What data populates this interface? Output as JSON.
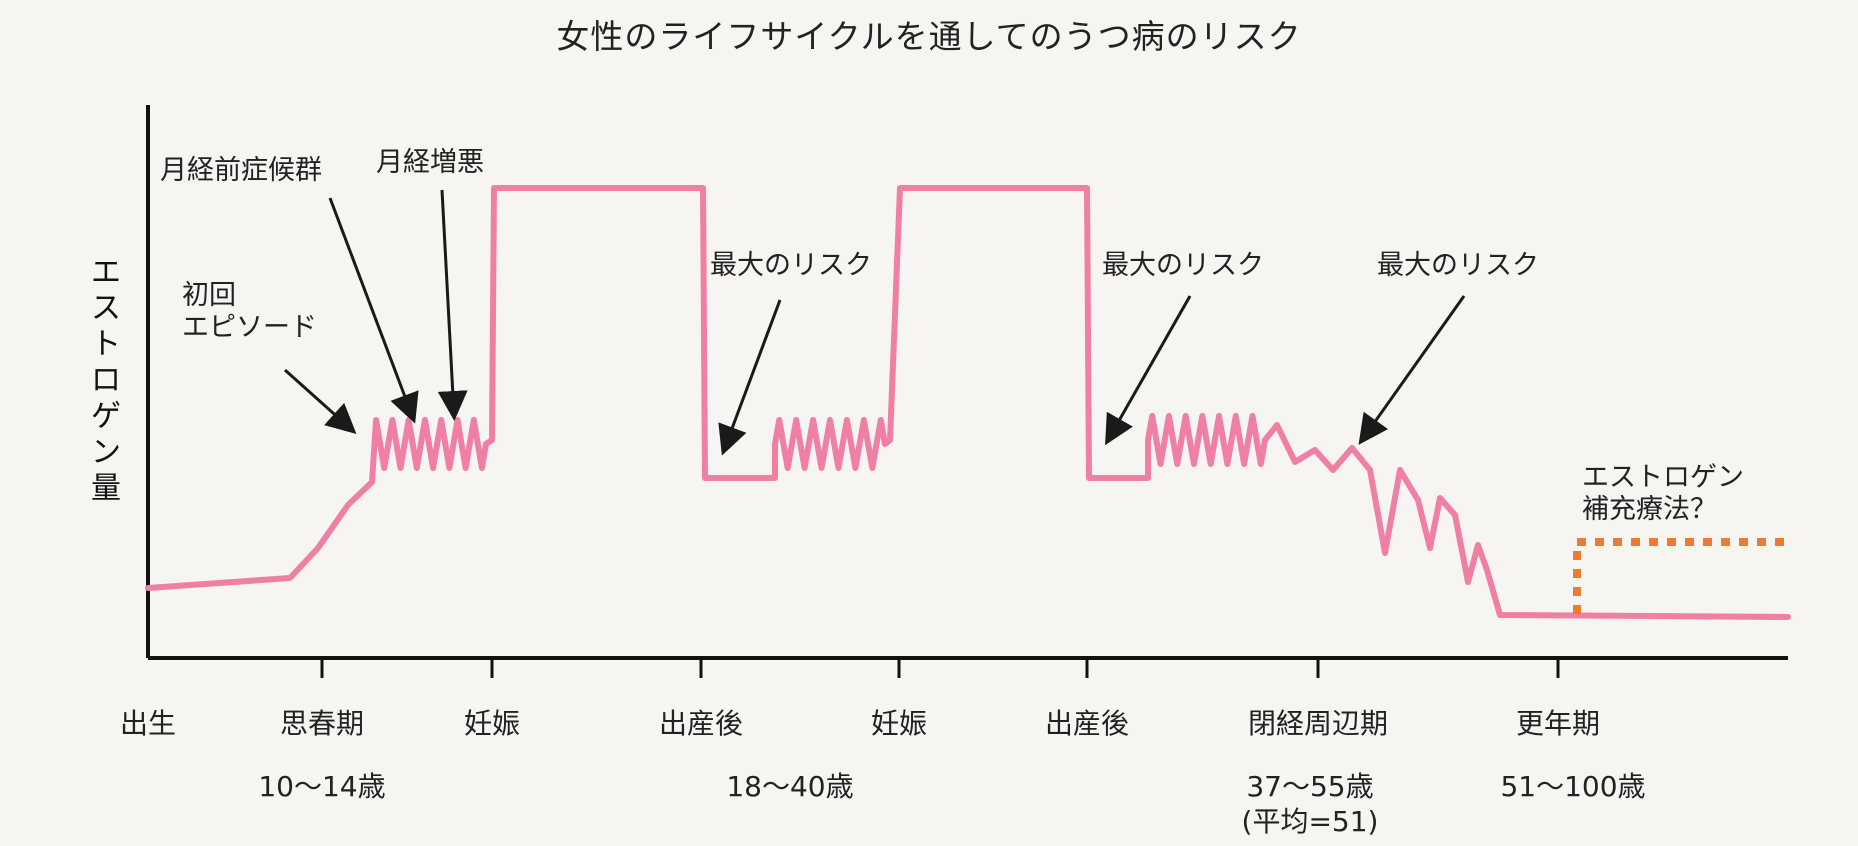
{
  "chart_data": {
    "type": "line",
    "title": "女性のライフサイクルを通してのうつ病のリスク",
    "ylabel": "エストロゲン量",
    "xticks": [
      "出生",
      "思春期",
      "妊娠",
      "出産後",
      "妊娠",
      "出産後",
      "閉経周辺期",
      "更年期"
    ],
    "age_ranges": [
      "10〜14歳",
      "18〜40歳",
      "37〜55歳",
      "(平均=51)",
      "51〜100歳"
    ],
    "annotations": {
      "first_episode": "初回\nエピソード",
      "pms": "月経前症候群",
      "worsening": "月経増悪",
      "max_risk_1": "最大のリスク",
      "max_risk_2": "最大のリスク",
      "max_risk_3": "最大のリスク",
      "hrt": "エストロゲン\n補充療法？"
    },
    "series": [
      {
        "line_style": "solid",
        "color": "#f07fa6"
      },
      {
        "line_style": "dotted",
        "color": "#ee7b2e"
      }
    ],
    "grid": false
  },
  "colors": {
    "axis": "#111111",
    "arrow": "#1a1a1a",
    "estrogen": "#f07fa6",
    "hrt": "#ee7b2e",
    "background": "#f6f5f1"
  }
}
